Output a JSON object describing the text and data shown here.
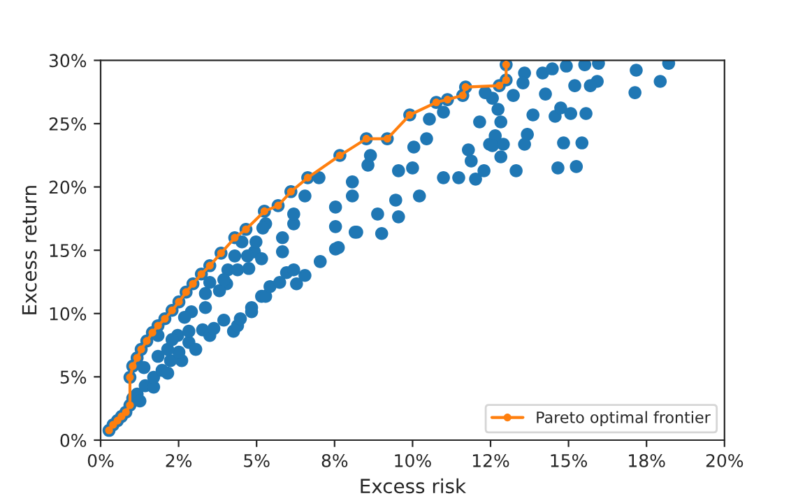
{
  "chart_data": {
    "type": "scatter",
    "xlabel": "Excess risk",
    "ylabel": "Excess return",
    "xlim": [
      0,
      20
    ],
    "ylim": [
      0,
      30
    ],
    "xticks": [
      {
        "value": 0,
        "label": "0%"
      },
      {
        "value": 2.5,
        "label": "2%"
      },
      {
        "value": 5,
        "label": "5%"
      },
      {
        "value": 7.5,
        "label": "8%"
      },
      {
        "value": 10,
        "label": "10%"
      },
      {
        "value": 12.5,
        "label": "12%"
      },
      {
        "value": 15,
        "label": "15%"
      },
      {
        "value": 17.5,
        "label": "18%"
      },
      {
        "value": 20,
        "label": "20%"
      }
    ],
    "yticks": [
      {
        "value": 0,
        "label": "0%"
      },
      {
        "value": 5,
        "label": "5%"
      },
      {
        "value": 10,
        "label": "10%"
      },
      {
        "value": 15,
        "label": "15%"
      },
      {
        "value": 20,
        "label": "20%"
      },
      {
        "value": 25,
        "label": "25%"
      },
      {
        "value": 30,
        "label": "30%"
      }
    ],
    "grid": false,
    "legend": "bottom right",
    "series": [
      {
        "color": "#1f77b4",
        "marker": "circle",
        "x": [
          0.27,
          0.4,
          0.54,
          0.67,
          0.81,
          0.94,
          0.94,
          1.03,
          1.17,
          1.3,
          1.48,
          1.66,
          1.84,
          2.06,
          2.29,
          2.51,
          2.74,
          2.96,
          3.23,
          3.5,
          3.86,
          4.3,
          4.66,
          5.25,
          5.69,
          6.1,
          6.64,
          7.67,
          8.52,
          9.19,
          9.91,
          10.76,
          11.12,
          11.61,
          11.7,
          12.78,
          13.0,
          13.0,
          1.03,
          1.17,
          1.26,
          1.43,
          1.7,
          1.7,
          1.97,
          2.15,
          2.24,
          2.6,
          2.51,
          2.83,
          3.05,
          3.27,
          3.5,
          3.63,
          3.95,
          4.26,
          4.39,
          4.48,
          4.84,
          4.84,
          5.16,
          5.29,
          5.43,
          5.74,
          5.96,
          6.19,
          6.28,
          6.55,
          7.04,
          7.62,
          8.21,
          9.01,
          8.88,
          9.55,
          9.46,
          10.22,
          10.0,
          9.55,
          10.99,
          11.48,
          12.02,
          12.29,
          11.88,
          11.79,
          10.45,
          10.04,
          10.54,
          10.99,
          12.15,
          12.47,
          7.53,
          7.53,
          8.07,
          8.07,
          8.16,
          7.53,
          6.19,
          6.19,
          5.83,
          5.83,
          6.55,
          7.0,
          8.57,
          8.65,
          4.93,
          4.98,
          5.29,
          5.16,
          4.75,
          4.08,
          4.04,
          4.3,
          4.53,
          3.36,
          3.81,
          3.95,
          3.5,
          2.91,
          2.69,
          2.47,
          2.15,
          2.29,
          1.84,
          1.39,
          1.84,
          2.83,
          3.36,
          4.39,
          4.71,
          5.2,
          13.59,
          14.17,
          14.48,
          14.93,
          15.52,
          15.96,
          17.17,
          18.21,
          17.94,
          17.13,
          15.92,
          15.7,
          15.2,
          14.26,
          13.54,
          13.23,
          12.56,
          12.33,
          12.74,
          12.83,
          13.86,
          14.57,
          14.75,
          15.07,
          15.56,
          12.65,
          13.68,
          12.56,
          12.91,
          13.59,
          14.84,
          15.43,
          12.83,
          13.32,
          14.66,
          15.25
        ],
        "values": [
          0.77,
          1.21,
          1.54,
          1.87,
          2.21,
          2.76,
          4.96,
          5.84,
          6.5,
          7.17,
          7.83,
          8.49,
          9.04,
          9.59,
          10.25,
          10.92,
          11.69,
          12.35,
          13.12,
          13.78,
          14.77,
          15.99,
          16.65,
          18.08,
          18.52,
          19.63,
          20.73,
          22.49,
          23.81,
          23.81,
          25.69,
          26.68,
          26.9,
          27.23,
          27.89,
          28.0,
          28.45,
          29.66,
          3.31,
          3.64,
          3.09,
          4.3,
          4.19,
          4.96,
          5.51,
          5.29,
          6.28,
          6.28,
          6.95,
          7.72,
          7.17,
          8.71,
          8.27,
          8.82,
          9.48,
          8.6,
          9.04,
          9.59,
          10.14,
          10.47,
          11.36,
          11.36,
          12.13,
          12.46,
          13.23,
          13.45,
          12.35,
          13.01,
          14.11,
          15.21,
          16.43,
          16.32,
          17.86,
          17.64,
          18.96,
          19.29,
          21.5,
          21.28,
          20.73,
          20.73,
          20.62,
          21.28,
          22.05,
          22.93,
          23.81,
          23.15,
          25.36,
          25.91,
          25.14,
          23.37,
          16.87,
          18.41,
          19.29,
          20.4,
          16.43,
          15.1,
          17.09,
          17.86,
          15.99,
          14.88,
          19.29,
          20.73,
          21.72,
          22.49,
          14.88,
          15.66,
          17.09,
          14.33,
          13.56,
          13.45,
          12.35,
          14.55,
          15.66,
          11.58,
          11.8,
          12.68,
          12.46,
          10.14,
          9.7,
          8.27,
          7.17,
          7.94,
          6.62,
          5.73,
          8.27,
          8.6,
          10.47,
          13.45,
          14.55,
          16.76,
          29.0,
          29.0,
          29.33,
          29.55,
          29.66,
          29.77,
          29.22,
          29.77,
          28.34,
          27.45,
          28.34,
          28.0,
          28.0,
          27.34,
          28.22,
          27.23,
          27.01,
          27.45,
          26.13,
          25.14,
          25.69,
          25.58,
          26.24,
          25.8,
          25.8,
          24.04,
          24.15,
          23.26,
          23.37,
          23.37,
          23.48,
          23.48,
          22.38,
          21.28,
          21.5,
          21.61
        ]
      },
      {
        "type": "line",
        "name": "Pareto optimal frontier",
        "color": "#ff7f0e",
        "marker": "circle",
        "line_style": "solid",
        "x": [
          0.27,
          0.4,
          0.54,
          0.67,
          0.81,
          0.94,
          0.94,
          1.03,
          1.17,
          1.3,
          1.48,
          1.66,
          1.84,
          2.06,
          2.29,
          2.51,
          2.74,
          2.96,
          3.23,
          3.5,
          3.86,
          4.3,
          4.66,
          5.25,
          5.69,
          6.1,
          6.64,
          7.67,
          8.52,
          9.19,
          9.91,
          10.76,
          11.12,
          11.61,
          11.7,
          12.78,
          13.0,
          13.0
        ],
        "values": [
          0.77,
          1.21,
          1.54,
          1.87,
          2.21,
          2.76,
          4.96,
          5.84,
          6.5,
          7.17,
          7.83,
          8.49,
          9.04,
          9.59,
          10.25,
          10.92,
          11.69,
          12.35,
          13.12,
          13.78,
          14.77,
          15.99,
          16.65,
          18.08,
          18.52,
          19.63,
          20.73,
          22.49,
          23.81,
          23.81,
          25.69,
          26.68,
          26.9,
          27.23,
          27.89,
          28.0,
          28.45,
          29.66
        ]
      }
    ]
  }
}
